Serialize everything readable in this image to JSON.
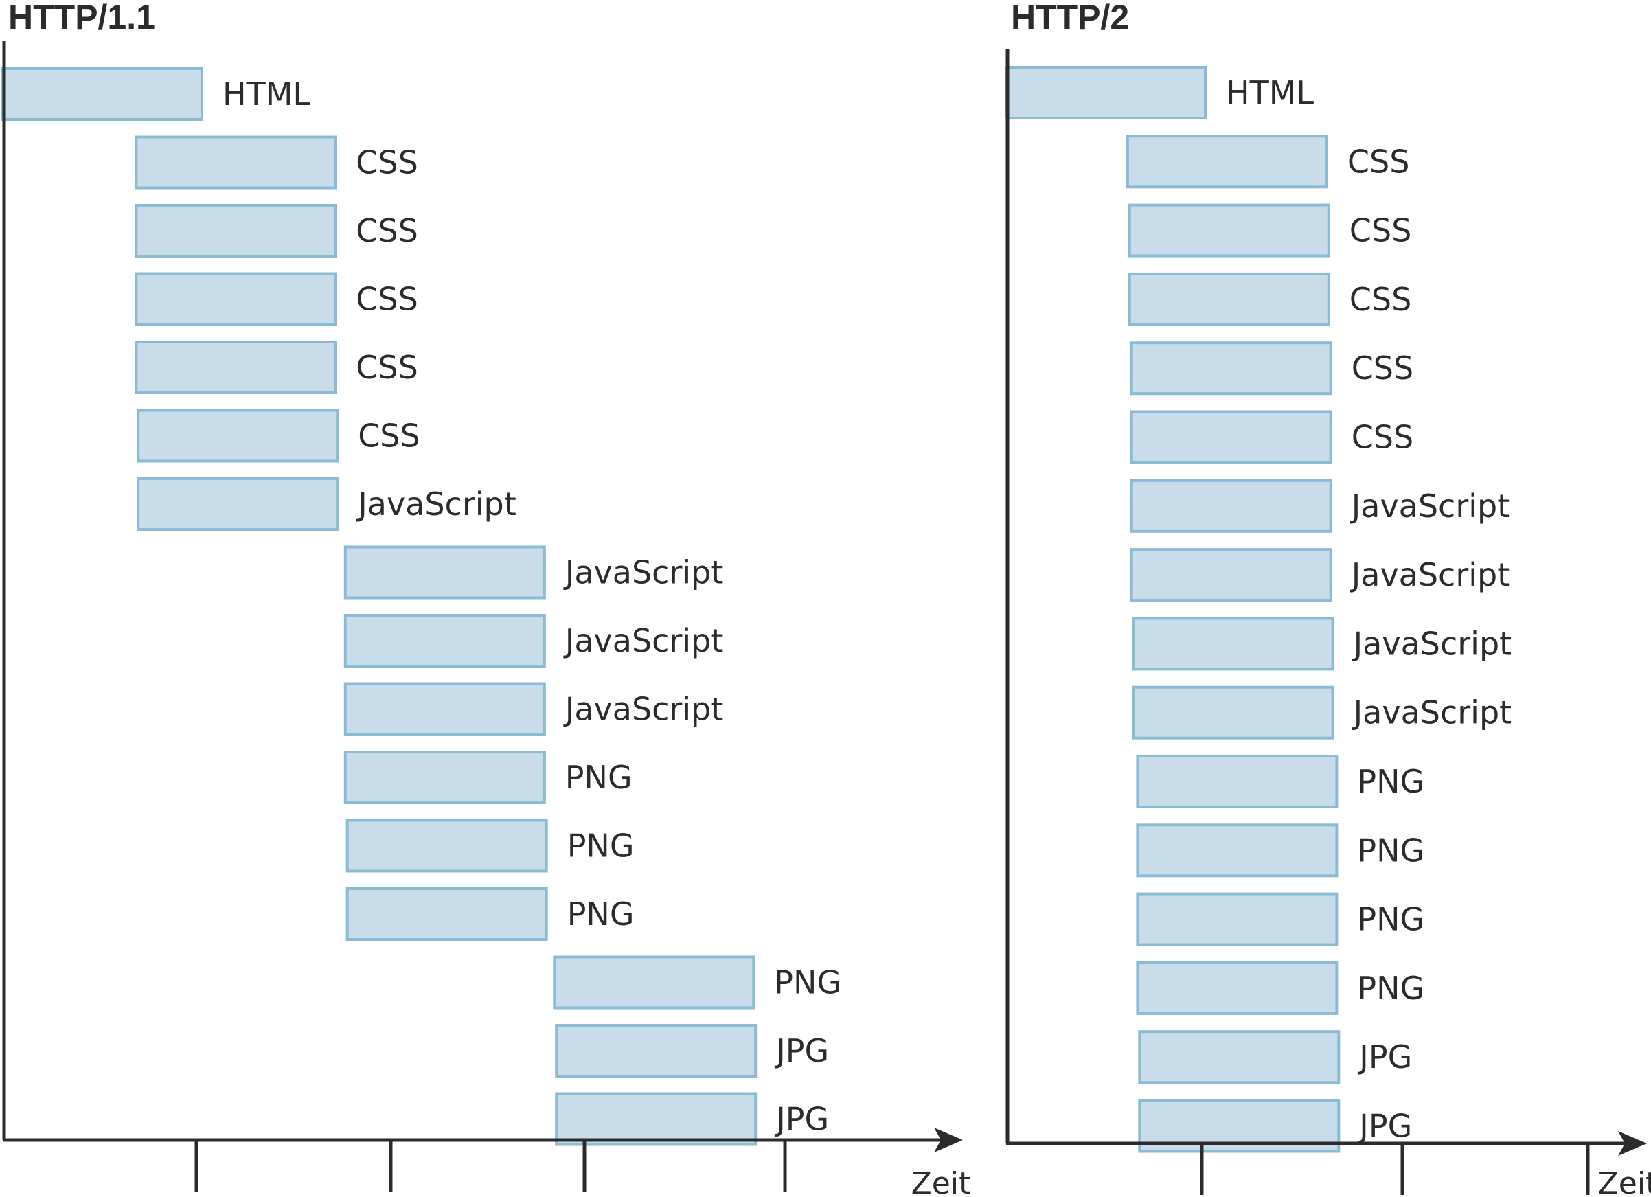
{
  "colors": {
    "bar_fill": "#c8dcea",
    "bar_stroke": "#8bbbd4",
    "axis": "#2b2b2b",
    "text": "#2b2b2b"
  },
  "axis_label": "Zeit",
  "panels": [
    {
      "title": "HTTP/1.1",
      "requests": [
        {
          "label": "HTML",
          "start": 0,
          "duration": 1
        },
        {
          "label": "CSS",
          "start": 0.67,
          "duration": 1
        },
        {
          "label": "CSS",
          "start": 0.67,
          "duration": 1
        },
        {
          "label": "CSS",
          "start": 0.67,
          "duration": 1
        },
        {
          "label": "CSS",
          "start": 0.67,
          "duration": 1
        },
        {
          "label": "CSS",
          "start": 0.68,
          "duration": 1
        },
        {
          "label": "JavaScript",
          "start": 0.68,
          "duration": 1
        },
        {
          "label": "JavaScript",
          "start": 1.72,
          "duration": 1
        },
        {
          "label": "JavaScript",
          "start": 1.72,
          "duration": 1
        },
        {
          "label": "JavaScript",
          "start": 1.72,
          "duration": 1
        },
        {
          "label": "PNG",
          "start": 1.72,
          "duration": 1
        },
        {
          "label": "PNG",
          "start": 1.73,
          "duration": 1
        },
        {
          "label": "PNG",
          "start": 1.73,
          "duration": 1
        },
        {
          "label": "PNG",
          "start": 2.77,
          "duration": 1
        },
        {
          "label": "JPG",
          "start": 2.78,
          "duration": 1
        },
        {
          "label": "JPG",
          "start": 2.78,
          "duration": 1
        }
      ]
    },
    {
      "title": "HTTP/2",
      "requests": [
        {
          "label": "HTML",
          "start": 0,
          "duration": 1
        },
        {
          "label": "CSS",
          "start": 0.61,
          "duration": 1
        },
        {
          "label": "CSS",
          "start": 0.62,
          "duration": 1
        },
        {
          "label": "CSS",
          "start": 0.62,
          "duration": 1
        },
        {
          "label": "CSS",
          "start": 0.63,
          "duration": 1
        },
        {
          "label": "CSS",
          "start": 0.63,
          "duration": 1
        },
        {
          "label": "JavaScript",
          "start": 0.63,
          "duration": 1
        },
        {
          "label": "JavaScript",
          "start": 0.63,
          "duration": 1
        },
        {
          "label": "JavaScript",
          "start": 0.64,
          "duration": 1
        },
        {
          "label": "JavaScript",
          "start": 0.64,
          "duration": 1
        },
        {
          "label": "PNG",
          "start": 0.66,
          "duration": 1
        },
        {
          "label": "PNG",
          "start": 0.66,
          "duration": 1
        },
        {
          "label": "PNG",
          "start": 0.66,
          "duration": 1
        },
        {
          "label": "PNG",
          "start": 0.66,
          "duration": 1
        },
        {
          "label": "JPG",
          "start": 0.67,
          "duration": 1
        },
        {
          "label": "JPG",
          "start": 0.67,
          "duration": 1
        }
      ]
    }
  ]
}
